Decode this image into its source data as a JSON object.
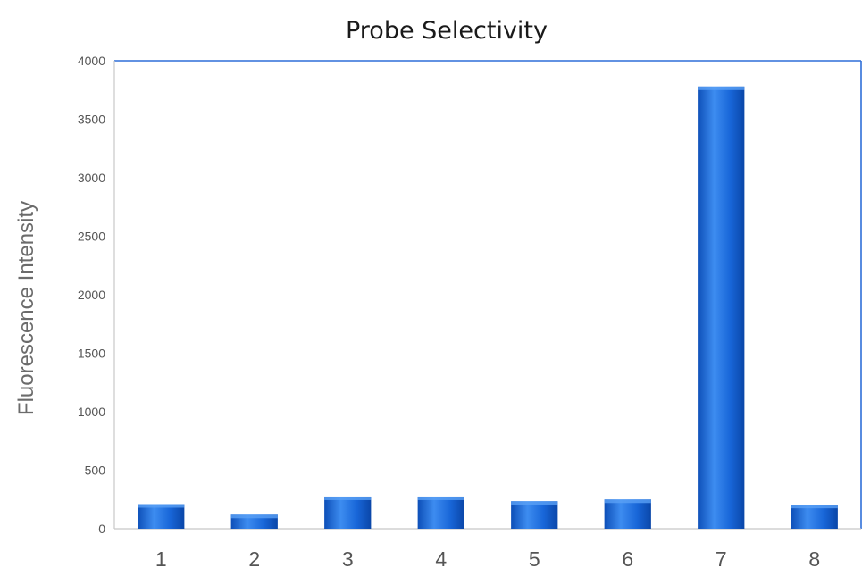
{
  "chart_data": {
    "type": "bar",
    "title": "Probe Selectivity",
    "xlabel": "",
    "ylabel": "Fluorescence Intensity",
    "categories": [
      "1",
      "2",
      "3",
      "4",
      "5",
      "6",
      "7",
      "8"
    ],
    "values": [
      210,
      120,
      275,
      275,
      235,
      250,
      3780,
      205
    ],
    "ylim": [
      0,
      4000
    ],
    "yticks": [
      0,
      500,
      1000,
      1500,
      2000,
      2500,
      3000,
      3500,
      4000
    ],
    "grid": false,
    "legend": "none",
    "colors": {
      "bar_light": "#3d8cf0",
      "bar_mid": "#1763d6",
      "bar_dark": "#0a46a8",
      "frame": "#2f6fd8",
      "axis": "#c8c8c8"
    }
  }
}
